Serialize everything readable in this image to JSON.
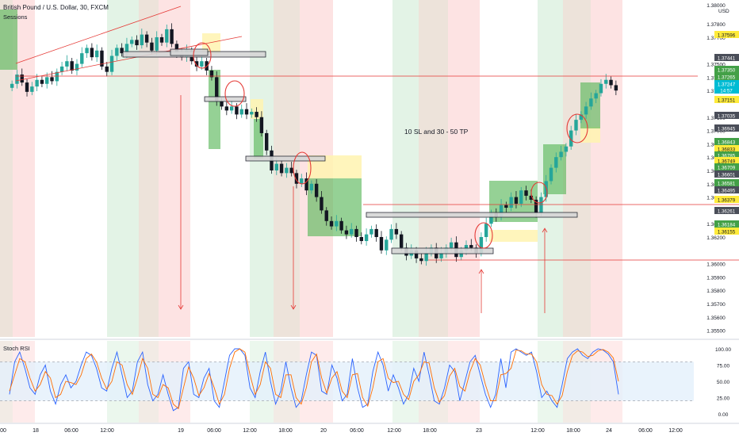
{
  "header": {
    "title": "British Pound / U.S. Dollar, 30, FXCM",
    "indicator": "Sessions"
  },
  "annotation": "10 SL and 30 - 50 TP",
  "rsi": {
    "name": "Stoch RSI"
  },
  "colors": {
    "up": "#26a69a",
    "down": "#131722",
    "resistance": "#e53935",
    "session_red": "#fde3e3",
    "session_green": "#e3f3e6",
    "session_tan": "#ede3da",
    "profit_zone": "#5cb85c",
    "loss_zone": "#fff3b0",
    "rsi_band": "#e3f0fb",
    "rsi_k": "#2962ff",
    "rsi_d": "#ff6d00",
    "price_tag": "#00bcd4"
  },
  "price_axis": {
    "currency": "USD",
    "ticks": [
      "1.37800",
      "1.37700",
      "1.37500",
      "1.37400",
      "1.37300",
      "1.37100",
      "1.37000",
      "1.36900",
      "1.36800",
      "1.36700",
      "1.36600",
      "1.36500",
      "1.36300",
      "1.36200",
      "1.36000",
      "1.35900",
      "1.35800",
      "1.35700",
      "1.35600",
      "1.35500"
    ],
    "ticks_top": "1.38000",
    "labels": [
      {
        "text": "1.37596",
        "style": "yellow"
      },
      {
        "text": "1.37441",
        "style": "dark"
      },
      {
        "text": "1.37350",
        "style": "green"
      },
      {
        "text": "1.37265",
        "style": "green"
      },
      {
        "text": "1.37247",
        "style": "cyan"
      },
      {
        "text": "14:57",
        "style": "cyan"
      },
      {
        "text": "1.37151",
        "style": "yellow"
      },
      {
        "text": "1.37035",
        "style": "dark"
      },
      {
        "text": "1.36945",
        "style": "dark"
      },
      {
        "text": "1.36843",
        "style": "green"
      },
      {
        "text": "1.36833",
        "style": "yellow"
      },
      {
        "text": "1.36785",
        "style": "green"
      },
      {
        "text": "1.36749",
        "style": "yellow"
      },
      {
        "text": "1.36709",
        "style": "green"
      },
      {
        "text": "1.36601",
        "style": "dark"
      },
      {
        "text": "1.36581",
        "style": "green"
      },
      {
        "text": "1.36495",
        "style": "dark"
      },
      {
        "text": "1.36379",
        "style": "yellow"
      },
      {
        "text": "1.36261",
        "style": "dark"
      },
      {
        "text": "1.36184",
        "style": "green"
      },
      {
        "text": "1.36155",
        "style": "yellow"
      }
    ]
  },
  "rsi_axis": {
    "ticks": [
      "100.00",
      "75.00",
      "50.00",
      "25.00",
      "0.00"
    ]
  },
  "time_axis": {
    "ticks": [
      "00",
      "18",
      "06:00",
      "12:00",
      "19",
      "06:00",
      "12:00",
      "18:00",
      "20",
      "06:00",
      "12:00",
      "18:00",
      "23",
      "12:00",
      "18:00",
      "24",
      "06:00",
      "12:00"
    ]
  },
  "chart_data": {
    "type": "candlestick",
    "title": "British Pound / U.S. Dollar, 30, FXCM",
    "ylim": [
      1.3545,
      1.3792
    ],
    "close": [
      1.3735,
      1.3742,
      1.3736,
      1.3729,
      1.3733,
      1.3738,
      1.3735,
      1.374,
      1.3737,
      1.3744,
      1.3748,
      1.3752,
      1.3745,
      1.375,
      1.3758,
      1.3762,
      1.3755,
      1.376,
      1.3748,
      1.3744,
      1.3756,
      1.3762,
      1.3758,
      1.3765,
      1.3768,
      1.3764,
      1.3772,
      1.3766,
      1.376,
      1.377,
      1.3766,
      1.3776,
      1.3765,
      1.3758,
      1.3755,
      1.376,
      1.3752,
      1.3748,
      1.3752,
      1.3745,
      1.374,
      1.3722,
      1.3718,
      1.3715,
      1.3718,
      1.3712,
      1.3716,
      1.3712,
      1.3714,
      1.371,
      1.3698,
      1.3685,
      1.367,
      1.3675,
      1.3668,
      1.3672,
      1.3668,
      1.366,
      1.3664,
      1.3655,
      1.366,
      1.365,
      1.364,
      1.3632,
      1.3628,
      1.3632,
      1.3625,
      1.3622,
      1.3626,
      1.362,
      1.3617,
      1.3622,
      1.3626,
      1.362,
      1.361,
      1.3618,
      1.3626,
      1.3622,
      1.3612,
      1.3606,
      1.361,
      1.3604,
      1.3602,
      1.3608,
      1.3612,
      1.3604,
      1.3608,
      1.3612,
      1.3616,
      1.3605,
      1.361,
      1.3614,
      1.3612,
      1.3608,
      1.362,
      1.363,
      1.3638,
      1.3635,
      1.3644,
      1.3642,
      1.365,
      1.3645,
      1.3655,
      1.3651,
      1.3648,
      1.3638,
      1.365,
      1.3662,
      1.3672,
      1.368,
      1.3684,
      1.3688,
      1.37,
      1.3708,
      1.3712,
      1.3718,
      1.3724,
      1.3728,
      1.3735,
      1.3738,
      1.3734,
      1.373
    ],
    "series": [
      {
        "name": "Stoch RSI %K",
        "values": [
          30,
          80,
          95,
          70,
          40,
          30,
          60,
          75,
          35,
          15,
          45,
          60,
          40,
          50,
          75,
          95,
          90,
          70,
          40,
          35,
          70,
          95,
          60,
          25,
          35,
          80,
          95,
          45,
          20,
          30,
          60,
          30,
          5,
          10,
          70,
          80,
          30,
          25,
          55,
          70,
          20,
          10,
          50,
          90,
          100,
          100,
          90,
          40,
          25,
          65,
          95,
          50,
          15,
          35,
          80,
          40,
          10,
          20,
          60,
          95,
          90,
          35,
          30,
          75,
          55,
          20,
          30,
          85,
          40,
          10,
          15,
          65,
          95,
          75,
          35,
          60,
          40,
          15,
          30,
          70,
          50,
          95,
          60,
          20,
          15,
          40,
          75,
          65,
          20,
          50,
          80,
          90,
          60,
          30,
          10,
          30,
          85,
          40,
          95,
          100,
          95,
          90,
          95,
          65,
          25,
          35,
          20,
          10,
          45,
          85,
          95,
          100,
          90,
          85,
          95,
          100,
          98,
          92,
          80,
          30
        ]
      },
      {
        "name": "Stoch RSI %D",
        "values": [
          35,
          60,
          85,
          80,
          55,
          35,
          45,
          65,
          55,
          25,
          30,
          50,
          48,
          45,
          60,
          85,
          92,
          80,
          55,
          38,
          50,
          80,
          75,
          45,
          30,
          55,
          85,
          70,
          30,
          25,
          45,
          40,
          15,
          8,
          40,
          72,
          55,
          28,
          40,
          62,
          40,
          15,
          30,
          70,
          95,
          100,
          95,
          60,
          30,
          45,
          80,
          70,
          30,
          25,
          60,
          60,
          25,
          15,
          40,
          80,
          92,
          55,
          32,
          55,
          65,
          35,
          25,
          60,
          62,
          25,
          12,
          40,
          80,
          85,
          55,
          48,
          50,
          30,
          22,
          50,
          60,
          80,
          78,
          40,
          18,
          28,
          58,
          70,
          42,
          35,
          65,
          85,
          75,
          45,
          20,
          20,
          60,
          62,
          70,
          98,
          97,
          92,
          92,
          80,
          45,
          30,
          28,
          15,
          28,
          65,
          90,
          97,
          95,
          88,
          90,
          97,
          99,
          95,
          86,
          50
        ]
      }
    ]
  }
}
